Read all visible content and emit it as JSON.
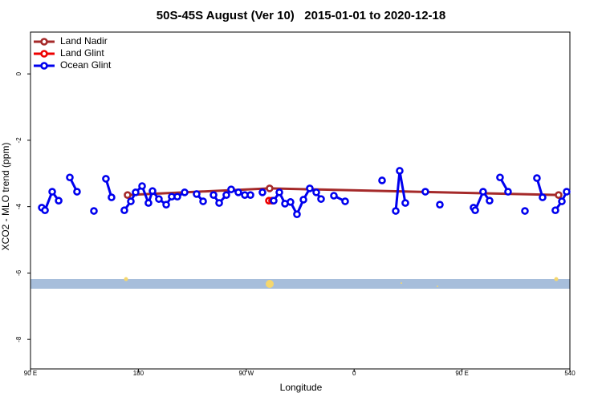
{
  "chart_data": {
    "type": "line",
    "title": "50S-45S August (Ver 10)   2015-01-01 to 2020-12-18",
    "x_label": "Longitude",
    "y_label": "XCO2 - MLO trend (ppm)",
    "xlim": [
      90,
      540
    ],
    "ylim": [
      -8.89,
      1.26
    ],
    "xticks": [
      {
        "value": 90,
        "label": "90 E"
      },
      180,
      {
        "value": 270,
        "label": "90 W"
      },
      {
        "value": 360,
        "label": "0"
      },
      {
        "value": 450,
        "label": "90 E"
      },
      540
    ],
    "yticks": [
      0,
      -2,
      -4,
      -6,
      -8
    ],
    "legend": "top-left",
    "series": [
      {
        "name": "Land Nadir",
        "color": "#a52a2a",
        "x": [
          171.0,
          289.5,
          530.6
        ],
        "values": [
          -3.65,
          -3.45,
          -3.65
        ]
      },
      {
        "name": "Land Glint",
        "color": "#ee0000",
        "x": [
          288.9,
          291.5
        ],
        "values": [
          -3.82,
          -3.82
        ]
      },
      {
        "name": "Ocean Glint",
        "color": "#0000ee",
        "x": [
          99.4,
          102.1,
          108.1,
          113.5,
          null,
          122.8,
          128.8,
          null,
          142.9,
          null,
          152.9,
          157.6,
          null,
          168.3,
          173.7,
          177.7,
          183.1,
          188.4,
          191.8,
          197.1,
          203.2,
          207.8,
          212.5,
          218.6,
          null,
          228.6,
          234.0,
          null,
          242.7,
          247.4,
          253.4,
          257.4,
          263.4,
          268.8,
          273.5,
          null,
          283.5,
          null,
          292.9,
          297.6,
          302.3,
          306.9,
          312.3,
          317.7,
          323.0,
          328.4,
          332.4,
          null,
          343.1,
          352.5,
          null,
          383.3,
          null,
          394.7,
          398.0,
          402.7,
          null,
          419.4,
          null,
          431.5,
          null,
          459.6,
          461.0,
          467.6,
          473.0,
          null,
          481.7,
          488.4,
          null,
          502.5,
          null,
          512.5,
          517.2,
          null,
          527.9,
          533.3,
          537.3
        ],
        "values": [
          -4.03,
          -4.11,
          -3.55,
          -3.82,
          null,
          -3.12,
          -3.55,
          null,
          -4.13,
          null,
          -3.16,
          -3.72,
          null,
          -4.11,
          -3.84,
          -3.57,
          -3.38,
          -3.89,
          -3.53,
          -3.77,
          -3.94,
          -3.7,
          -3.7,
          -3.57,
          null,
          -3.62,
          -3.84,
          null,
          -3.65,
          -3.89,
          -3.65,
          -3.48,
          -3.57,
          -3.65,
          -3.65,
          null,
          -3.57,
          null,
          -3.82,
          -3.57,
          -3.91,
          -3.86,
          -4.23,
          -3.79,
          -3.45,
          -3.57,
          -3.77,
          null,
          -3.67,
          -3.84,
          null,
          -3.21,
          null,
          -4.13,
          -2.92,
          -3.89,
          null,
          -3.55,
          null,
          -3.94,
          null,
          -4.03,
          -4.11,
          -3.55,
          -3.82,
          null,
          -3.12,
          -3.55,
          null,
          -4.13,
          null,
          -3.14,
          -3.72,
          null,
          -4.11,
          -3.84,
          -3.55
        ]
      }
    ]
  }
}
